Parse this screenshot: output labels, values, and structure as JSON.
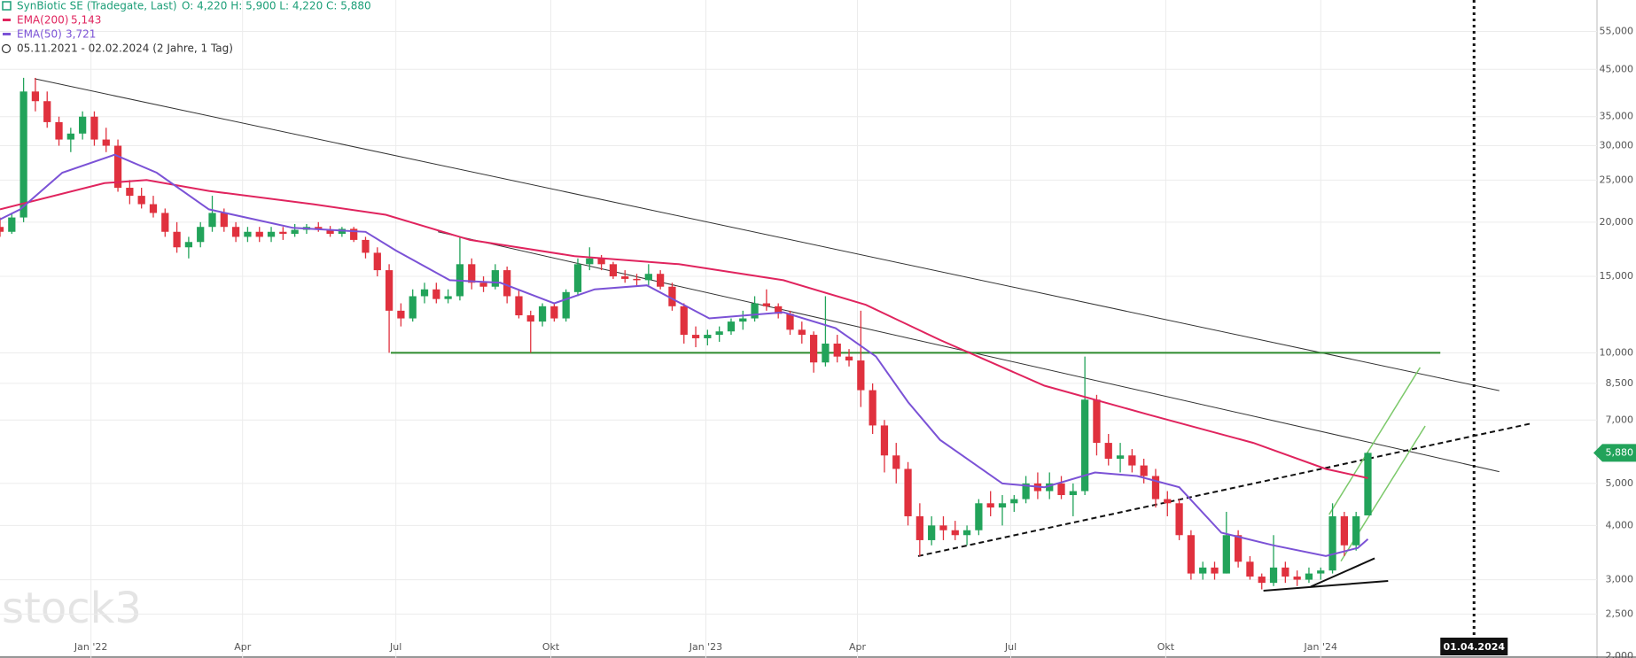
{
  "chart_data": {
    "type": "candlestick",
    "title": "SynBiotic SE (Tradegate, Last)",
    "ohlc_text": "O: 4,220  H: 5,900  L: 4,220  C: 5,880",
    "period": "05.11.2021 - 02.02.2024  (2 Jahre, 1 Tag)",
    "watermark": "stock3",
    "ylog": true,
    "grid": true,
    "ylim": [
      1.98,
      65
    ],
    "xlim": [
      3,
      951
    ],
    "yticks": [
      {
        "value": 55,
        "label": "55,000"
      },
      {
        "value": 45,
        "label": "45,000"
      },
      {
        "value": 35,
        "label": "35,000"
      },
      {
        "value": 30,
        "label": "30,000"
      },
      {
        "value": 25,
        "label": "25,000"
      },
      {
        "value": 20,
        "label": "20,000"
      },
      {
        "value": 15,
        "label": "15,000"
      },
      {
        "value": 10,
        "label": "10,000"
      },
      {
        "value": 8.5,
        "label": "8,500"
      },
      {
        "value": 7,
        "label": "7,000"
      },
      {
        "value": 5,
        "label": "5,000"
      },
      {
        "value": 4,
        "label": "4,000"
      },
      {
        "value": 3,
        "label": "3,000"
      },
      {
        "value": 2.5,
        "label": "2,500"
      },
      {
        "value": 2,
        "label": "2,000"
      }
    ],
    "xticks": [
      {
        "value": 57,
        "label": "Jan '22"
      },
      {
        "value": 147,
        "label": "Apr"
      },
      {
        "value": 238,
        "label": "Jul"
      },
      {
        "value": 330,
        "label": "Okt"
      },
      {
        "value": 422,
        "label": "Jan '23"
      },
      {
        "value": 512,
        "label": "Apr"
      },
      {
        "value": 603,
        "label": "Jul"
      },
      {
        "value": 695,
        "label": "Okt"
      },
      {
        "value": 787,
        "label": "Jan '24"
      }
    ],
    "marker": {
      "value": 878,
      "label": "01.04.2024"
    },
    "last_price": {
      "value": 5.88,
      "label": "5,880"
    },
    "up_color": "#22a35a",
    "down_color": "#e0313e",
    "candles": {
      "x": [
        3,
        10,
        17,
        24,
        31,
        38,
        45,
        52,
        59,
        66,
        73,
        80,
        87,
        94,
        101,
        108,
        115,
        122,
        129,
        136,
        143,
        150,
        157,
        164,
        171,
        178,
        185,
        192,
        199,
        206,
        213,
        220,
        227,
        234,
        241,
        248,
        255,
        262,
        269,
        276,
        283,
        290,
        297,
        304,
        311,
        318,
        325,
        332,
        339,
        346,
        353,
        360,
        367,
        374,
        381,
        388,
        395,
        402,
        409,
        416,
        423,
        430,
        437,
        444,
        451,
        458,
        465,
        472,
        479,
        486,
        493,
        500,
        507,
        514,
        521,
        528,
        535,
        542,
        549,
        556,
        563,
        570,
        577,
        584,
        591,
        598,
        605,
        612,
        619,
        626,
        633,
        640,
        647,
        654,
        661,
        668,
        675,
        682,
        689,
        696,
        703,
        710,
        717,
        724,
        731,
        738,
        745,
        752,
        759,
        766,
        773,
        780,
        787,
        794,
        801,
        808,
        815
      ],
      "ohlc": [
        [
          19.5,
          20.5,
          18.5,
          19
        ],
        [
          19,
          21,
          18.8,
          20.5
        ],
        [
          20.5,
          43,
          20,
          40
        ],
        [
          40,
          43,
          36,
          38
        ],
        [
          38,
          40,
          33,
          34
        ],
        [
          34,
          35,
          30,
          31
        ],
        [
          31,
          33,
          29,
          32
        ],
        [
          32,
          36,
          31,
          35
        ],
        [
          35,
          36,
          30,
          31
        ],
        [
          31,
          33,
          29,
          30
        ],
        [
          30,
          31,
          23.5,
          24
        ],
        [
          24,
          25,
          22,
          23
        ],
        [
          23,
          24,
          21.5,
          22
        ],
        [
          22,
          23,
          20.5,
          21
        ],
        [
          21,
          21.5,
          18.5,
          19
        ],
        [
          19,
          20,
          17,
          17.5
        ],
        [
          17.5,
          18.5,
          16.5,
          18
        ],
        [
          18,
          20,
          17.5,
          19.5
        ],
        [
          19.5,
          23,
          19,
          21
        ],
        [
          21,
          21.5,
          19,
          19.5
        ],
        [
          19.5,
          20,
          18,
          18.5
        ],
        [
          18.5,
          19.5,
          18,
          19
        ],
        [
          19,
          19.5,
          18,
          18.5
        ],
        [
          18.5,
          19.5,
          18,
          19
        ],
        [
          19,
          19.5,
          18.2,
          18.8
        ],
        [
          18.8,
          19.8,
          18.5,
          19.2
        ],
        [
          19.2,
          19.8,
          18.8,
          19.5
        ],
        [
          19.5,
          20,
          19,
          19.2
        ],
        [
          19.2,
          19.6,
          18.5,
          18.8
        ],
        [
          18.8,
          19.5,
          18.5,
          19.3
        ],
        [
          19.3,
          19.5,
          18,
          18.2
        ],
        [
          18.2,
          18.5,
          16.5,
          17
        ],
        [
          17,
          17.5,
          15,
          15.5
        ],
        [
          15.5,
          16,
          10,
          12.5
        ],
        [
          12.5,
          13,
          11.5,
          12
        ],
        [
          12,
          14,
          11.8,
          13.5
        ],
        [
          13.5,
          14.5,
          13,
          14
        ],
        [
          14,
          14.5,
          13,
          13.3
        ],
        [
          13.3,
          14,
          13,
          13.5
        ],
        [
          13.5,
          18.5,
          13.2,
          16
        ],
        [
          16,
          16.5,
          14,
          14.5
        ],
        [
          14.5,
          15,
          13.8,
          14.2
        ],
        [
          14.2,
          16,
          14,
          15.5
        ],
        [
          15.5,
          15.8,
          13,
          13.5
        ],
        [
          13.5,
          14,
          12,
          12.2
        ],
        [
          12.2,
          12.5,
          10,
          11.8
        ],
        [
          11.8,
          13,
          11.5,
          12.8
        ],
        [
          12.8,
          13,
          11.8,
          12
        ],
        [
          12,
          14,
          11.8,
          13.8
        ],
        [
          13.8,
          16.5,
          13.5,
          16
        ],
        [
          16,
          17.5,
          15.5,
          16.5
        ],
        [
          16.5,
          16.8,
          15.5,
          16
        ],
        [
          16,
          16.2,
          14.8,
          15
        ],
        [
          15,
          15.5,
          14.5,
          14.8
        ],
        [
          14.8,
          15.2,
          14.2,
          14.7
        ],
        [
          14.7,
          16,
          14.3,
          15.2
        ],
        [
          15.2,
          15.5,
          14,
          14.2
        ],
        [
          14.2,
          14.5,
          12.5,
          12.8
        ],
        [
          12.8,
          13,
          10.5,
          11
        ],
        [
          11,
          11.5,
          10.3,
          10.8
        ],
        [
          10.8,
          11.3,
          10.4,
          11
        ],
        [
          11,
          11.5,
          10.6,
          11.2
        ],
        [
          11.2,
          12,
          11,
          11.8
        ],
        [
          11.8,
          12.5,
          11.3,
          12
        ],
        [
          12,
          13.5,
          11.8,
          13
        ],
        [
          13,
          14,
          12.5,
          12.8
        ],
        [
          12.8,
          13,
          12,
          12.3
        ],
        [
          12.3,
          12.5,
          11,
          11.3
        ],
        [
          11.3,
          11.8,
          10.5,
          11
        ],
        [
          11,
          11.2,
          9,
          9.5
        ],
        [
          9.5,
          13.5,
          9.3,
          10.5
        ],
        [
          10.5,
          11,
          9.5,
          9.8
        ],
        [
          9.8,
          10.2,
          9.3,
          9.6
        ],
        [
          9.6,
          12.5,
          7.5,
          8.2
        ],
        [
          8.2,
          8.5,
          6.5,
          6.8
        ],
        [
          6.8,
          7,
          5.3,
          5.8
        ],
        [
          5.8,
          6.2,
          5,
          5.4
        ],
        [
          5.4,
          5.6,
          4,
          4.2
        ],
        [
          4.2,
          4.5,
          3.4,
          3.7
        ],
        [
          3.7,
          4.2,
          3.6,
          4
        ],
        [
          4,
          4.2,
          3.7,
          3.9
        ],
        [
          3.9,
          4.1,
          3.7,
          3.8
        ],
        [
          3.8,
          4,
          3.6,
          3.9
        ],
        [
          3.9,
          4.6,
          3.8,
          4.5
        ],
        [
          4.5,
          4.8,
          4.2,
          4.4
        ],
        [
          4.4,
          4.7,
          4,
          4.5
        ],
        [
          4.5,
          4.7,
          4.3,
          4.6
        ],
        [
          4.6,
          5.2,
          4.5,
          5
        ],
        [
          5,
          5.3,
          4.6,
          4.8
        ],
        [
          4.8,
          5.3,
          4.6,
          5
        ],
        [
          5,
          5.2,
          4.6,
          4.7
        ],
        [
          4.7,
          5,
          4.2,
          4.8
        ],
        [
          4.8,
          9.8,
          4.7,
          7.8
        ],
        [
          7.8,
          8,
          5.8,
          6.2
        ],
        [
          6.2,
          6.5,
          5.5,
          5.7
        ],
        [
          5.7,
          6.2,
          5.3,
          5.8
        ],
        [
          5.8,
          6,
          5.3,
          5.5
        ],
        [
          5.5,
          5.7,
          5,
          5.2
        ],
        [
          5.2,
          5.4,
          4.4,
          4.6
        ],
        [
          4.6,
          4.8,
          4.2,
          4.5
        ],
        [
          4.5,
          4.6,
          3.7,
          3.8
        ],
        [
          3.8,
          3.9,
          3,
          3.1
        ],
        [
          3.1,
          3.3,
          3,
          3.2
        ],
        [
          3.2,
          3.3,
          3,
          3.1
        ],
        [
          3.1,
          4.3,
          3.1,
          3.8
        ],
        [
          3.8,
          3.9,
          3.2,
          3.3
        ],
        [
          3.3,
          3.4,
          3,
          3.05
        ],
        [
          3.05,
          3.1,
          2.85,
          2.95
        ],
        [
          2.95,
          3.8,
          2.9,
          3.2
        ],
        [
          3.2,
          3.3,
          2.95,
          3.05
        ],
        [
          3.05,
          3.15,
          2.9,
          3
        ],
        [
          3,
          3.2,
          2.95,
          3.1
        ],
        [
          3.1,
          3.2,
          3,
          3.15
        ],
        [
          3.15,
          4.5,
          3.1,
          4.2
        ],
        [
          4.2,
          4.3,
          3.4,
          3.6
        ],
        [
          3.6,
          4.3,
          3.5,
          4.2
        ],
        [
          4.22,
          5.9,
          4.22,
          5.88
        ]
      ]
    },
    "series": [
      {
        "name": "EMA(200)",
        "value_label": "5,143",
        "color": "#e0245e",
        "x": [
          3,
          65,
          90,
          127,
          189,
          232,
          282,
          344,
          406,
          468,
          517,
          561,
          623,
          685,
          747,
          790,
          815
        ],
        "values": [
          21.4,
          24.6,
          25,
          23.6,
          22,
          20.8,
          18.2,
          16.7,
          16,
          14.7,
          12.9,
          10.7,
          8.4,
          7.2,
          6.2,
          5.4,
          5.143
        ]
      },
      {
        "name": "EMA(50)",
        "value_label": "3,721",
        "color": "#7b52d6",
        "x": [
          3,
          15,
          40,
          71,
          96,
          127,
          177,
          220,
          238,
          270,
          300,
          332,
          356,
          387,
          424,
          468,
          499,
          523,
          542,
          561,
          598,
          623,
          653,
          678,
          703,
          728,
          759,
          790,
          809,
          815
        ],
        "values": [
          20.3,
          21.4,
          26,
          28.6,
          26,
          21.4,
          19.4,
          19,
          17.2,
          14.7,
          14.5,
          13,
          14,
          14.3,
          12,
          12.4,
          11.4,
          9.8,
          7.7,
          6.3,
          5,
          4.9,
          5.3,
          5.2,
          4.9,
          3.85,
          3.6,
          3.4,
          3.55,
          3.721
        ]
      }
    ],
    "trendlines": [
      {
        "x": [
          23.5,
          893
        ],
        "y": [
          42.8,
          8.18
        ],
        "color": "#333333",
        "width": 1,
        "dash": false
      },
      {
        "x": [
          263,
          893
        ],
        "y": [
          19,
          5.32
        ],
        "color": "#333333",
        "width": 1,
        "dash": false
      },
      {
        "x": [
          235,
          858
        ],
        "y": [
          10,
          10
        ],
        "color": "#2e8b2e",
        "width": 2,
        "dash": false
      },
      {
        "x": [
          548,
          911
        ],
        "y": [
          3.4,
          6.86
        ],
        "color": "#111111",
        "width": 2,
        "dash": true
      },
      {
        "x": [
          753,
          827
        ],
        "y": [
          2.83,
          2.98
        ],
        "color": "#111111",
        "width": 2,
        "dash": false
      },
      {
        "x": [
          781,
          819
        ],
        "y": [
          2.89,
          3.36
        ],
        "color": "#111111",
        "width": 2,
        "dash": false
      },
      {
        "x": [
          792,
          846
        ],
        "y": [
          4.24,
          9.25
        ],
        "color": "#7cc96b",
        "width": 1.5,
        "dash": false
      },
      {
        "x": [
          799,
          849
        ],
        "y": [
          3.31,
          6.78
        ],
        "color": "#7cc96b",
        "width": 1.5,
        "dash": false
      }
    ]
  }
}
